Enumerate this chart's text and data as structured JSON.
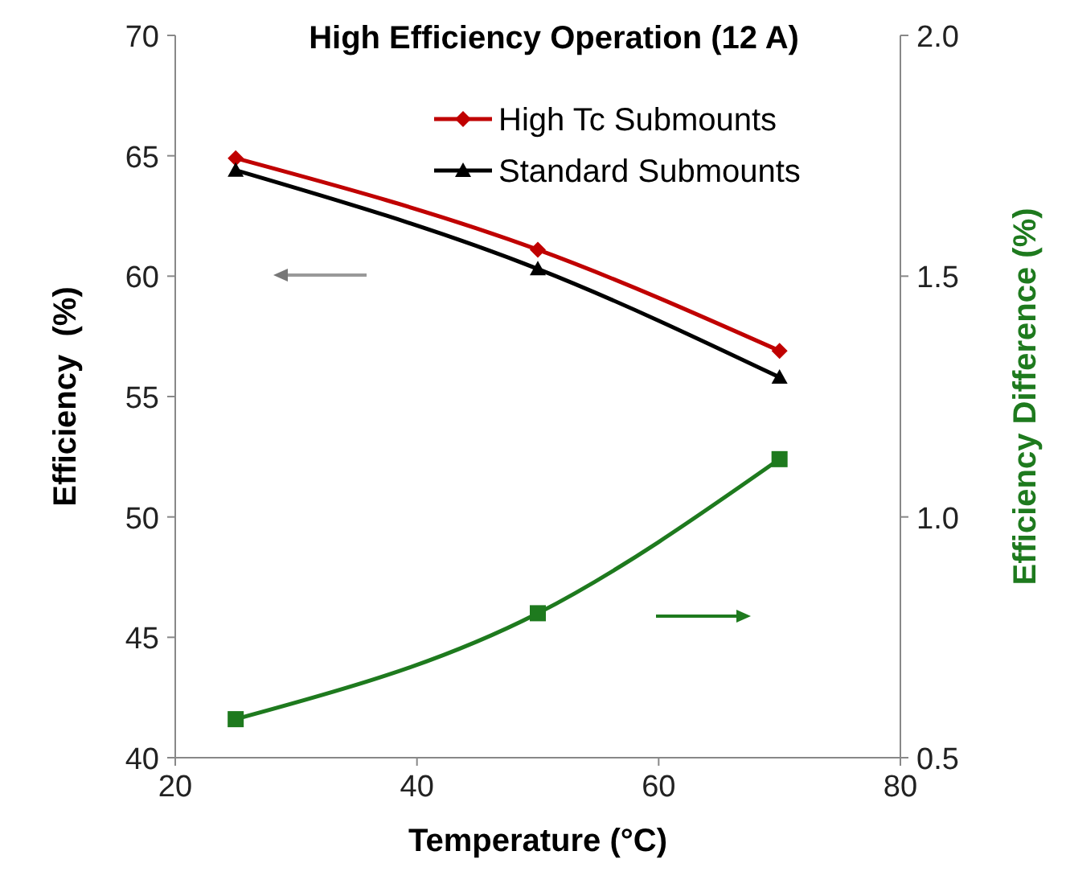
{
  "chart_data": {
    "type": "line",
    "title": "High Efficiency Operation (12 A)",
    "xlabel": "Temperature (°C)",
    "ylabel": "Efficiency  (%)",
    "y2label": "Efficiency Difference (%)",
    "x": [
      25,
      50,
      70
    ],
    "series": [
      {
        "name": "High Tc Submounts",
        "color": "#c00000",
        "marker": "diamond",
        "values": [
          64.9,
          61.1,
          56.9
        ]
      },
      {
        "name": "Standard Submounts",
        "color": "#000000",
        "marker": "triangle",
        "values": [
          64.4,
          60.3,
          55.8
        ]
      },
      {
        "color": "#1e7a1e",
        "marker": "square",
        "axis": "y2",
        "values": [
          0.58,
          0.8,
          1.12
        ]
      }
    ],
    "xlim": [
      20,
      80
    ],
    "xticks": [
      20,
      40,
      60,
      80
    ],
    "ylim": [
      40,
      70
    ],
    "yticks": [
      40,
      45,
      50,
      55,
      60,
      65,
      70
    ],
    "y2lim": [
      0.5,
      2.0
    ],
    "y2ticks": [
      {
        "value": 0.5,
        "label": "0.5"
      },
      {
        "value": 1.0,
        "label": "1.0"
      },
      {
        "value": 1.5,
        "label": "1.5"
      },
      {
        "value": 2.0,
        "label": "2.0"
      }
    ],
    "grid": false,
    "legend": "top right",
    "line_style": "solid"
  }
}
